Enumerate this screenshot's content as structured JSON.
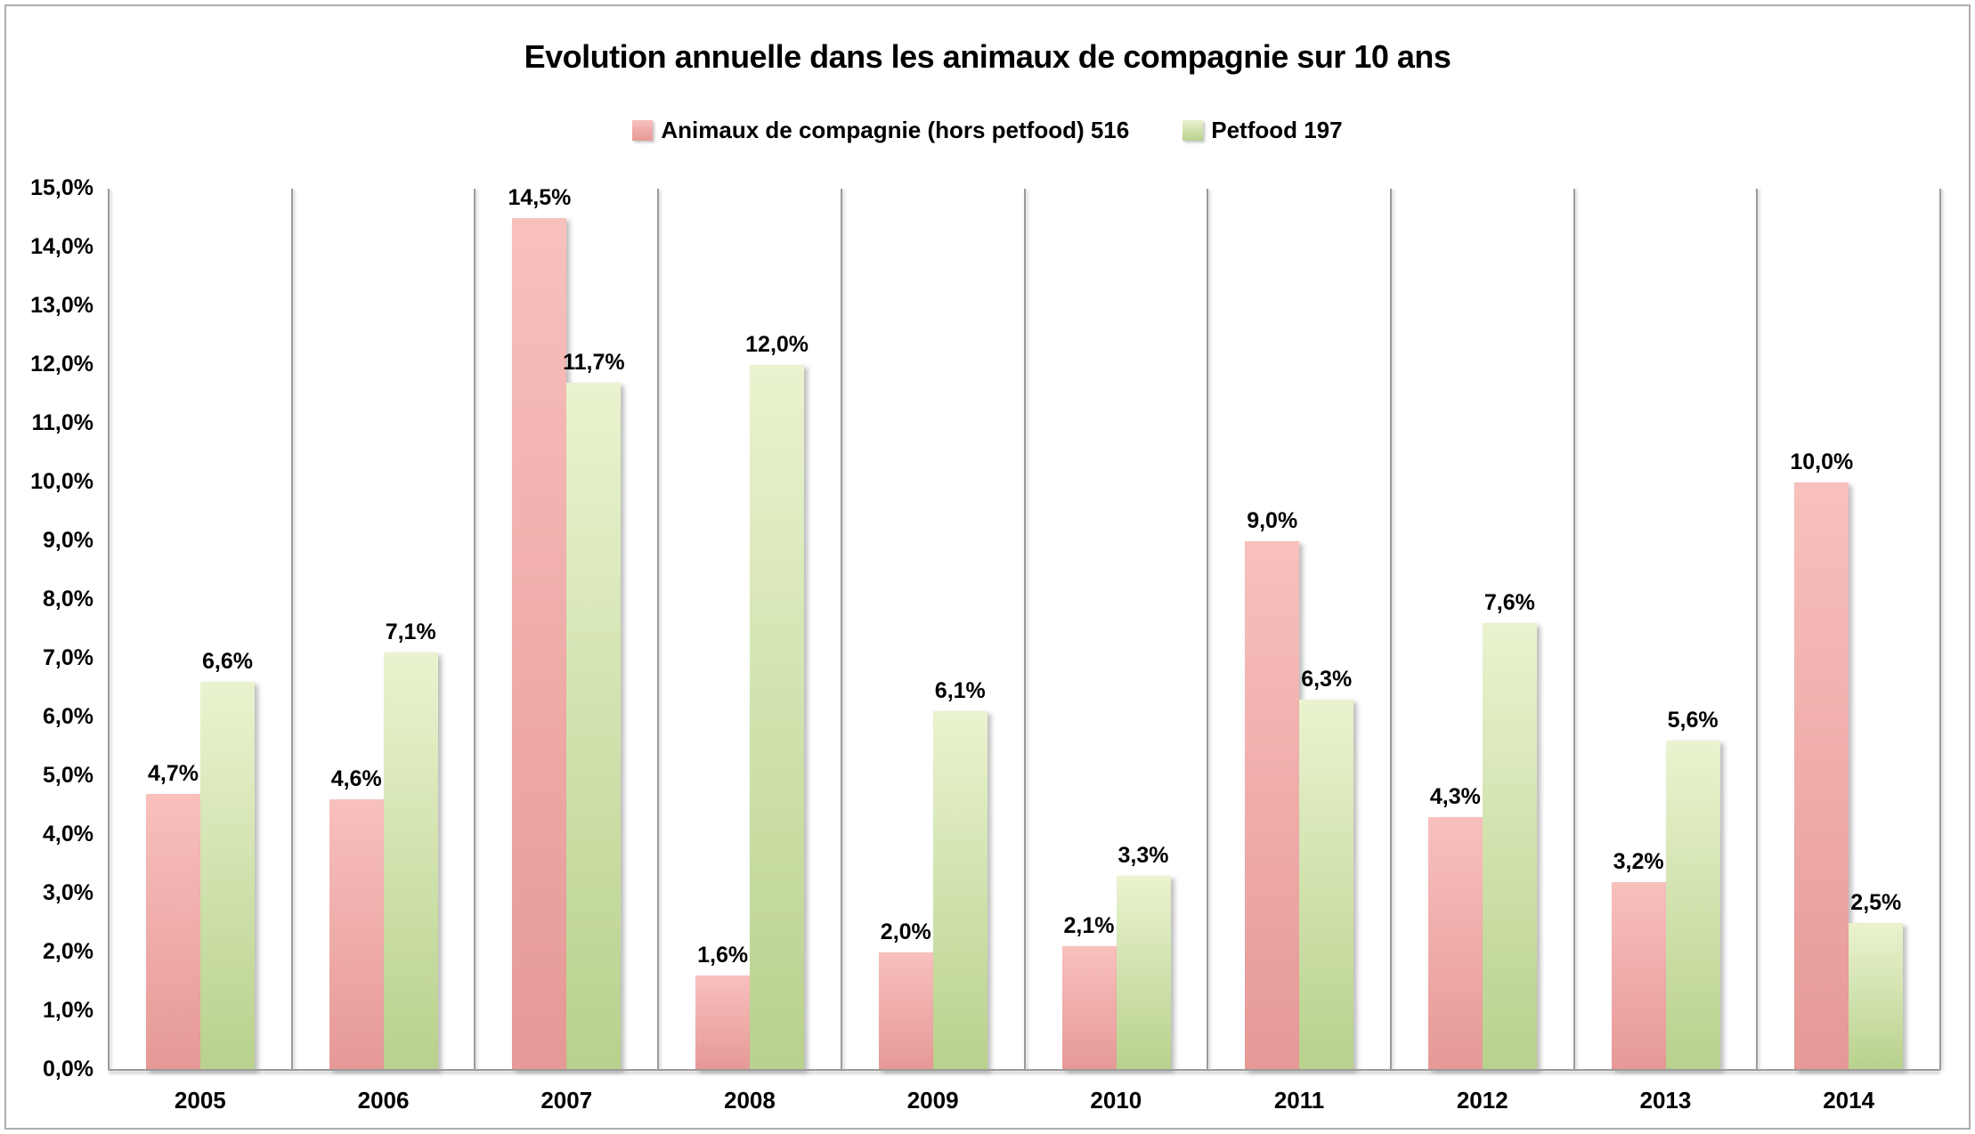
{
  "title": "Evolution annuelle dans les animaux de compagnie sur 10 ans",
  "legend": [
    {
      "label": "Animaux de compagnie (hors petfood) 516"
    },
    {
      "label": "Petfood 197"
    }
  ],
  "colors": {
    "series1_top": "#f8c0bd",
    "series1_bottom": "#e69996",
    "series2_top": "#eaf3cf",
    "series2_bottom": "#b8d18c",
    "axis_line": "#9b9b9b",
    "text": "#000000"
  },
  "chart_data": {
    "type": "bar",
    "title": "Evolution annuelle dans les animaux de compagnie sur 10 ans",
    "categories": [
      "2005",
      "2006",
      "2007",
      "2008",
      "2009",
      "2010",
      "2011",
      "2012",
      "2013",
      "2014"
    ],
    "series": [
      {
        "name": "Animaux de compagnie (hors petfood) 516",
        "values": [
          4.7,
          4.6,
          14.5,
          1.6,
          2.0,
          2.1,
          9.0,
          4.3,
          3.2,
          10.0
        ],
        "labels": [
          "4,7%",
          "4,6%",
          "14,5%",
          "1,6%",
          "2,0%",
          "2,1%",
          "9,0%",
          "4,3%",
          "3,2%",
          "10,0%"
        ]
      },
      {
        "name": "Petfood 197",
        "values": [
          6.6,
          7.1,
          11.7,
          12.0,
          6.1,
          3.3,
          6.3,
          7.6,
          5.6,
          2.5
        ],
        "labels": [
          "6,6%",
          "7,1%",
          "11,7%",
          "12,0%",
          "6,1%",
          "3,3%",
          "6,3%",
          "7,6%",
          "5,6%",
          "2,5%"
        ]
      }
    ],
    "xlabel": "",
    "ylabel": "",
    "ylim": [
      0,
      15
    ],
    "ytick_step": 1,
    "ytick_labels": [
      "0,0%",
      "1,0%",
      "2,0%",
      "3,0%",
      "4,0%",
      "5,0%",
      "6,0%",
      "7,0%",
      "8,0%",
      "9,0%",
      "10,0%",
      "11,0%",
      "12,0%",
      "13,0%",
      "14,0%",
      "15,0%"
    ],
    "grid": "vertical category separators only",
    "legend_position": "top",
    "value_labels": "above bars, French decimal comma"
  }
}
